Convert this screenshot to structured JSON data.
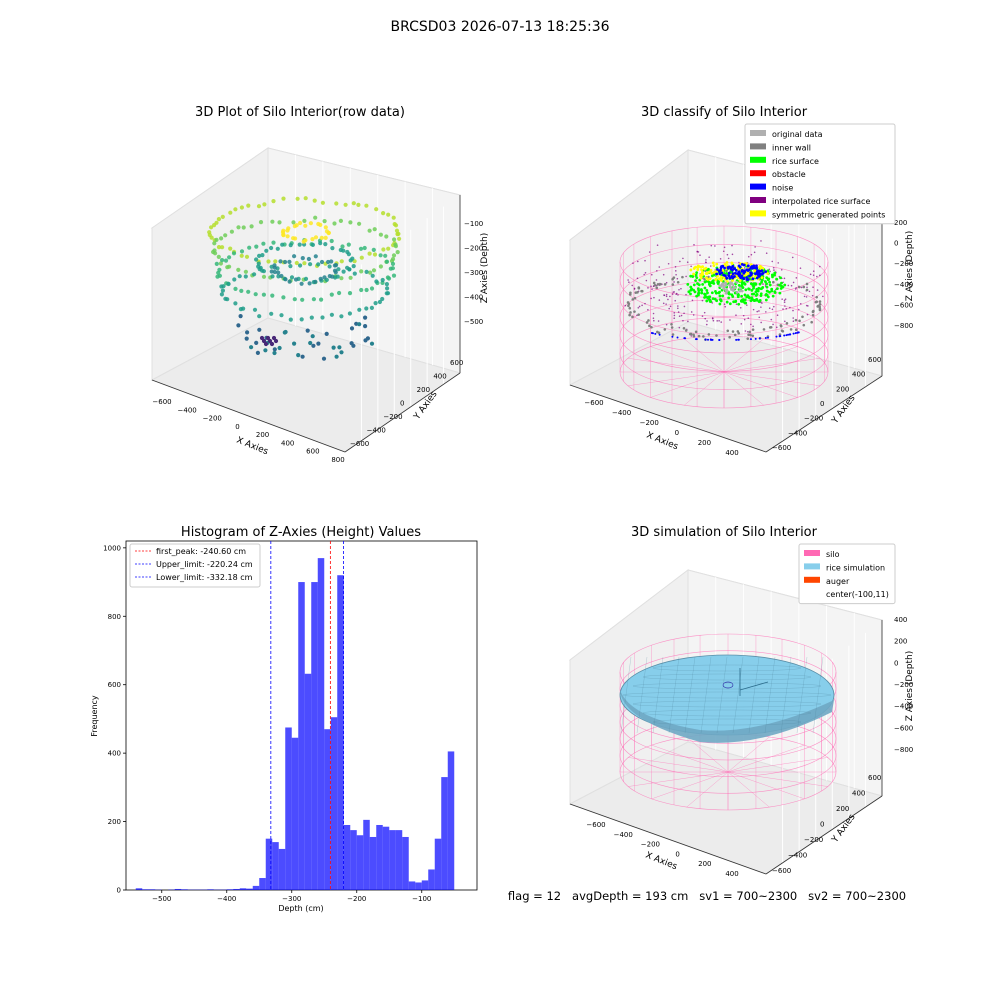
{
  "figure": {
    "suptitle": "BRCSD03 2026-07-13 18:25:36",
    "footer": "flag = 12   avgDepth = 193 cm   sv1 = 700~2300   sv2 = 700~2300"
  },
  "chart_data": [
    {
      "type": "scatter",
      "title": "3D Plot of Silo Interior(row data)",
      "xlabel": "X Axies",
      "ylabel": "Y Axies",
      "zlabel": "Z Axies (Depth)",
      "x_ticks": [
        "−600",
        "−400",
        "−200",
        "0",
        "200",
        "400",
        "600",
        "800"
      ],
      "y_ticks": [
        "−600",
        "−400",
        "−200",
        "0",
        "200",
        "400",
        "600"
      ],
      "z_ticks": [
        "−100",
        "−200",
        "−300",
        "−400",
        "−500"
      ],
      "colormap": "viridis"
    },
    {
      "type": "scatter",
      "title": "3D classify of Silo Interior",
      "xlabel": "X Axies",
      "ylabel": "Y Axies",
      "zlabel": "Z Axies (Depth)",
      "x_ticks": [
        "−600",
        "−400",
        "−200",
        "0",
        "200",
        "400"
      ],
      "y_ticks": [
        "−600",
        "−400",
        "−200",
        "0",
        "200",
        "400",
        "600"
      ],
      "z_ticks": [
        "200",
        "0",
        "−200",
        "−400",
        "−600",
        "−800"
      ],
      "legend": [
        {
          "label": "original data",
          "color": "#b0b0b0"
        },
        {
          "label": "inner wall",
          "color": "#808080"
        },
        {
          "label": "rice surface",
          "color": "#00ff00"
        },
        {
          "label": "obstacle",
          "color": "#ff0000"
        },
        {
          "label": "noise",
          "color": "#0000ff"
        },
        {
          "label": "interpolated rice surface",
          "color": "#800080"
        },
        {
          "label": "symmetric generated points",
          "color": "#ffff00"
        }
      ],
      "legend_position": "top-right"
    },
    {
      "type": "bar",
      "title": "Histogram of Z-Axies (Height) Values",
      "xlabel": "Depth (cm)",
      "ylabel": "Frequency",
      "xlim": [
        -555,
        -15
      ],
      "ylim": [
        0,
        1020
      ],
      "x_ticks": [
        -500,
        -400,
        -300,
        -200,
        -100
      ],
      "y_ticks": [
        0,
        200,
        400,
        600,
        800,
        1000
      ],
      "bar_color": "#0000ff",
      "bins": {
        "start": -540,
        "width": 10,
        "counts": [
          5,
          2,
          2,
          1,
          0,
          1,
          3,
          2,
          1,
          1,
          1,
          2,
          1,
          1,
          2,
          3,
          5,
          4,
          12,
          35,
          150,
          140,
          120,
          475,
          445,
          900,
          632,
          900,
          970,
          470,
          505,
          920,
          190,
          175,
          160,
          205,
          155,
          190,
          185,
          175,
          175,
          155,
          25,
          22,
          28,
          60,
          150,
          330,
          405
        ]
      },
      "lines": [
        {
          "label": "first_peak: -240.60 cm",
          "x": -240.6,
          "color": "#ff0000"
        },
        {
          "label": "Upper_limit: -220.24 cm",
          "x": -220.24,
          "color": "#0000ff"
        },
        {
          "label": "Lower_limit: -332.18 cm",
          "x": -332.18,
          "color": "#0000ff"
        }
      ],
      "legend_position": "top-left"
    },
    {
      "type": "area",
      "title": "3D simulation of Silo Interior",
      "xlabel": "X Axies",
      "ylabel": "Y Axies",
      "zlabel": "Z Axies (Depth)",
      "x_ticks": [
        "−600",
        "−400",
        "−200",
        "0",
        "200",
        "400"
      ],
      "y_ticks": [
        "−600",
        "−400",
        "−200",
        "0",
        "200",
        "400",
        "600"
      ],
      "z_ticks": [
        "400",
        "200",
        "0",
        "−200",
        "−400",
        "−600",
        "−800"
      ],
      "legend": [
        {
          "label": "silo",
          "color": "#ff69b4"
        },
        {
          "label": "rice simulation",
          "color": "#87ceeb"
        },
        {
          "label": "auger",
          "color": "#ff4500"
        },
        {
          "label": "center(-100,11)",
          "color": ""
        }
      ],
      "legend_position": "top-right"
    }
  ]
}
